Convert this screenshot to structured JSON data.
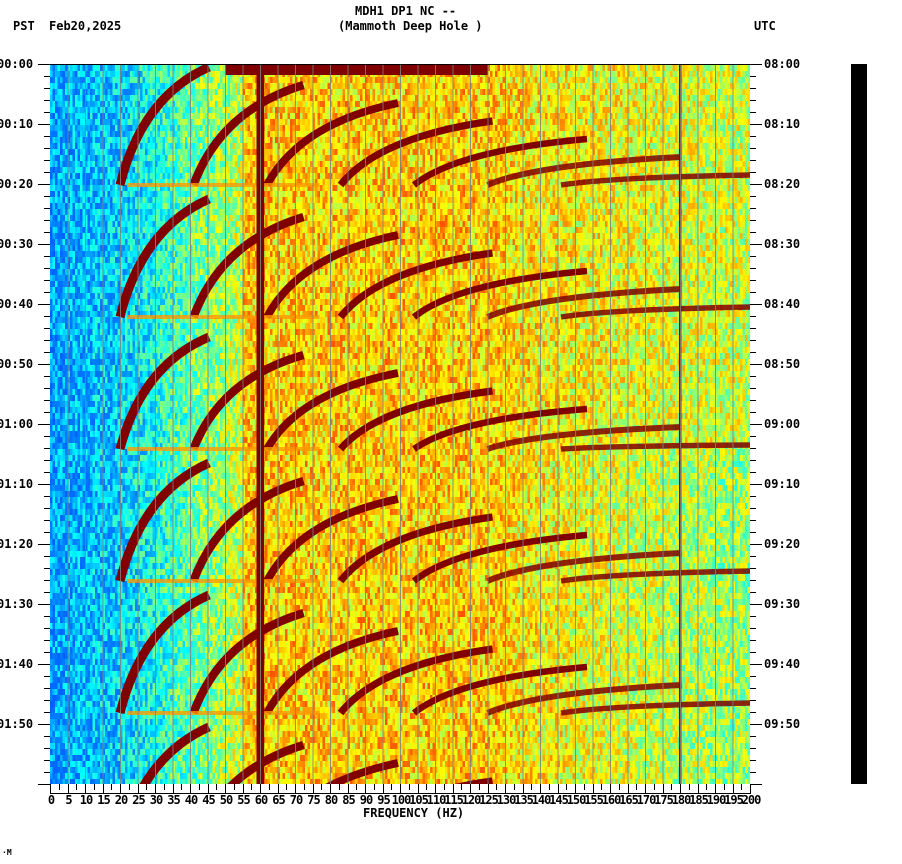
{
  "header": {
    "title_line1": "MDH1 DP1 NC --",
    "title_line2": "(Mammoth Deep Hole )",
    "left_tz": "PST",
    "date": "Feb20,2025",
    "right_tz": "UTC"
  },
  "footer_mark": "·M",
  "chart_data": {
    "type": "heatmap",
    "title": "MDH1 DP1 NC -- (Mammoth Deep Hole )",
    "subtitle": "Feb20,2025",
    "xlabel": "FREQUENCY (HZ)",
    "ylabel_left": "PST",
    "ylabel_right": "UTC",
    "xlim": [
      0,
      200
    ],
    "x_ticks": [
      0,
      5,
      10,
      15,
      20,
      25,
      30,
      35,
      40,
      45,
      50,
      55,
      60,
      65,
      70,
      75,
      80,
      85,
      90,
      95,
      100,
      105,
      110,
      115,
      120,
      125,
      130,
      135,
      140,
      145,
      150,
      155,
      160,
      165,
      170,
      175,
      180,
      185,
      190,
      195,
      200
    ],
    "y_ticks_left": [
      "00:00",
      "00:10",
      "00:20",
      "00:30",
      "00:40",
      "00:50",
      "01:00",
      "01:10",
      "01:20",
      "01:30",
      "01:40",
      "01:50"
    ],
    "y_ticks_right": [
      "08:00",
      "08:10",
      "08:20",
      "08:30",
      "08:40",
      "08:50",
      "09:00",
      "09:10",
      "09:20",
      "09:30",
      "09:40",
      "09:50"
    ],
    "y_range_minutes": [
      0,
      120
    ],
    "grid": "vertical gray lines every 5 Hz",
    "colormap": "jet (blue low → dark red high)",
    "features": [
      {
        "name": "60 Hz line",
        "freq_hz": 60,
        "note": "persistent dark-red vertical band"
      },
      {
        "name": "180 Hz line",
        "freq_hz": 180,
        "note": "thin dark-red vertical line"
      },
      {
        "name": "swept harmonic arcs",
        "note": "repeating dark-red curved bands sweeping upward from ~20-45 Hz toward ~125 Hz, cycles roughly every 10-22 min"
      }
    ],
    "regions": [
      {
        "freq_range_hz": [
          0,
          20
        ],
        "level": "low",
        "color": "blue"
      },
      {
        "freq_range_hz": [
          20,
          55
        ],
        "level": "low-mid",
        "color": "cyan/green"
      },
      {
        "freq_range_hz": [
          55,
          130
        ],
        "level": "high",
        "color": "orange/red"
      },
      {
        "freq_range_hz": [
          130,
          200
        ],
        "level": "mid",
        "color": "yellow/green"
      }
    ]
  },
  "colors": {
    "dark_red": "#800000",
    "red": "#ff2000",
    "orange": "#ff9900",
    "yellow": "#ffff00",
    "green": "#80ff80",
    "cyan": "#00ffff",
    "blue": "#0080ff",
    "grid": "#808080"
  }
}
